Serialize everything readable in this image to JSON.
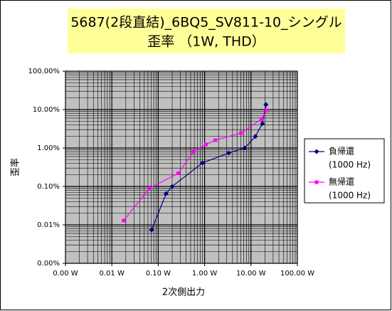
{
  "chart_data": {
    "type": "line",
    "title": [
      "5687(2段直結)_6BQ5_SV811-10_シングル",
      "歪率 （1W, THD）"
    ],
    "x_label": "2次側出力",
    "y_label": "歪率",
    "log_x": true,
    "log_y": true,
    "grid": true,
    "xlim": [
      0.001,
      100
    ],
    "ylim": [
      0.001,
      100
    ],
    "xticks": [
      {
        "value": 0.001,
        "label": "0.00 W"
      },
      {
        "value": 0.01,
        "label": "0.01 W"
      },
      {
        "value": 0.1,
        "label": "0.10 W"
      },
      {
        "value": 1,
        "label": "1.00 W"
      },
      {
        "value": 10,
        "label": "10.00 W"
      },
      {
        "value": 100,
        "label": "100.00 W"
      }
    ],
    "yticks": [
      {
        "value": 0.001,
        "label": "0.00%"
      },
      {
        "value": 0.01,
        "label": "0.01%"
      },
      {
        "value": 0.1,
        "label": "0.10%"
      },
      {
        "value": 1,
        "label": "1.00%"
      },
      {
        "value": 10,
        "label": "10.00%"
      },
      {
        "value": 100,
        "label": "100.00%"
      }
    ],
    "legend": "right",
    "series": [
      {
        "name": "負帰還",
        "note": "(1000 Hz)",
        "color": "#000080",
        "marker": "diamond",
        "x": [
          0.072,
          0.148,
          0.2,
          0.9,
          3.3,
          7.3,
          12.4,
          17.6,
          21
        ],
        "values": [
          0.0074,
          0.065,
          0.1,
          0.41,
          0.74,
          1.0,
          2.0,
          4.3,
          13.5
        ]
      },
      {
        "name": "無帰還",
        "note": "(1000 Hz)",
        "color": "#ff00ff",
        "marker": "square",
        "x": [
          0.018,
          0.065,
          0.27,
          0.57,
          1.07,
          1.7,
          6.1,
          17,
          21.8
        ],
        "values": [
          0.013,
          0.09,
          0.22,
          0.8,
          1.24,
          1.6,
          2.45,
          5.7,
          9.6
        ]
      }
    ]
  }
}
